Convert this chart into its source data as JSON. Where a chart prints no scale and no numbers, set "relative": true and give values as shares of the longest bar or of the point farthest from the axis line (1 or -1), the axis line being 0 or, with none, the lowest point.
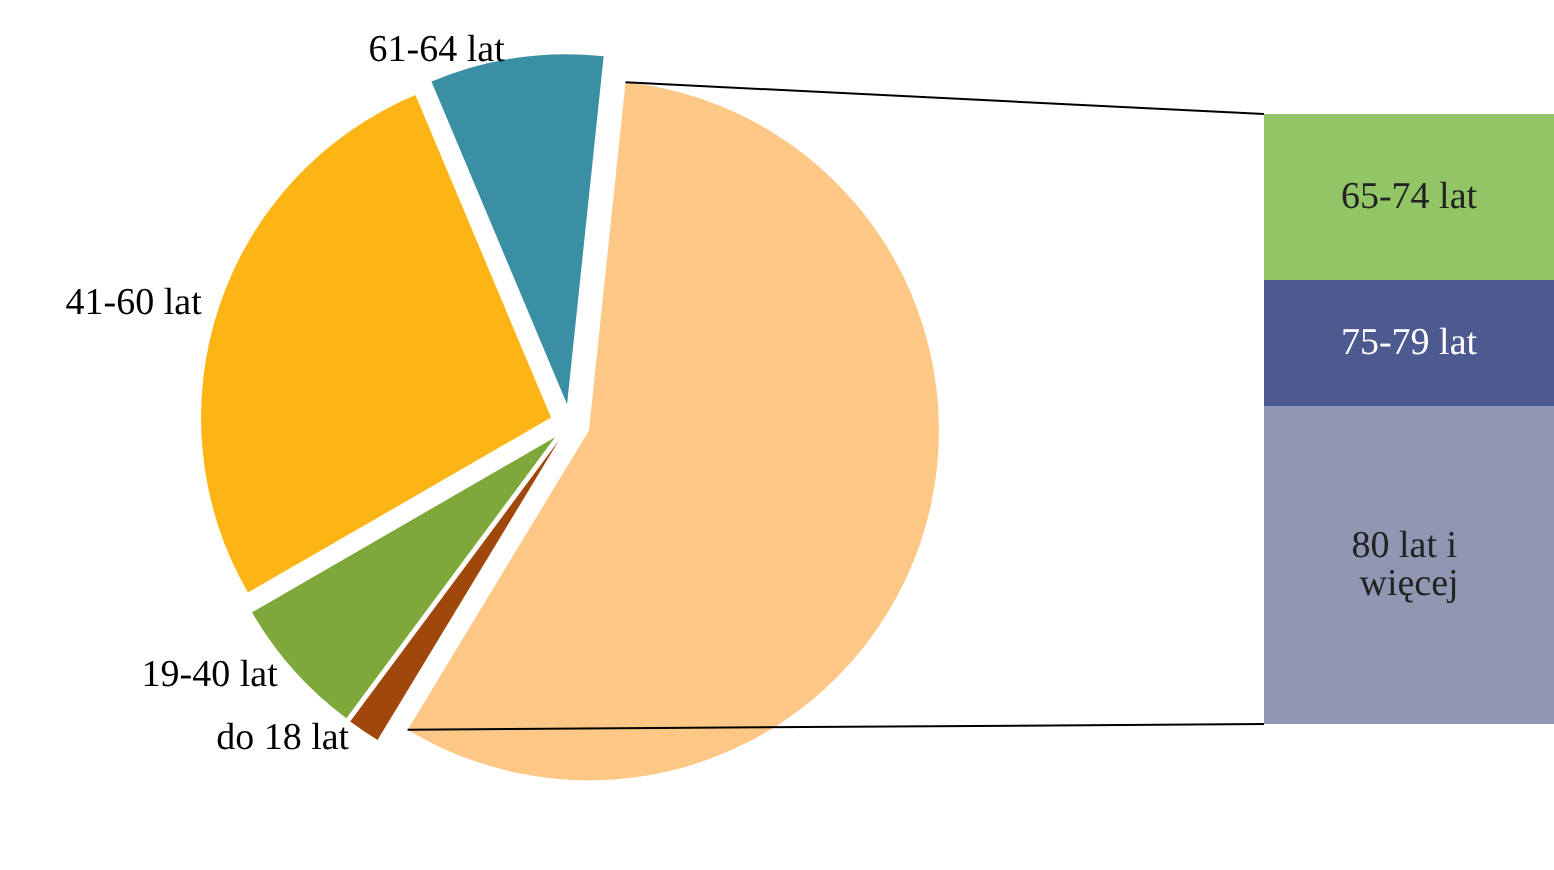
{
  "chart_data": [
    {
      "type": "pie",
      "categories": [
        null,
        "do 18 lat",
        "19-40 lat",
        "41-60 lat",
        "61-64 lat"
      ],
      "values": [
        57,
        1.5,
        6.5,
        27,
        8
      ],
      "colors": [
        "#fdc886",
        "#a0480c",
        "#7ea83a",
        "#fdb515",
        "#3a8fa5"
      ]
    },
    {
      "type": "bar",
      "stacked": true,
      "relative": true,
      "categories": [
        null
      ],
      "series": [
        {
          "name": "80 lat i więcej",
          "color": "#8f97b2",
          "values": [
            0.521
          ]
        },
        {
          "name": "75-79 lat",
          "color": "#4d5a90",
          "values": [
            0.207
          ]
        },
        {
          "name": "65-74 lat",
          "color": "#92c565",
          "values": [
            0.272
          ]
        }
      ]
    }
  ]
}
